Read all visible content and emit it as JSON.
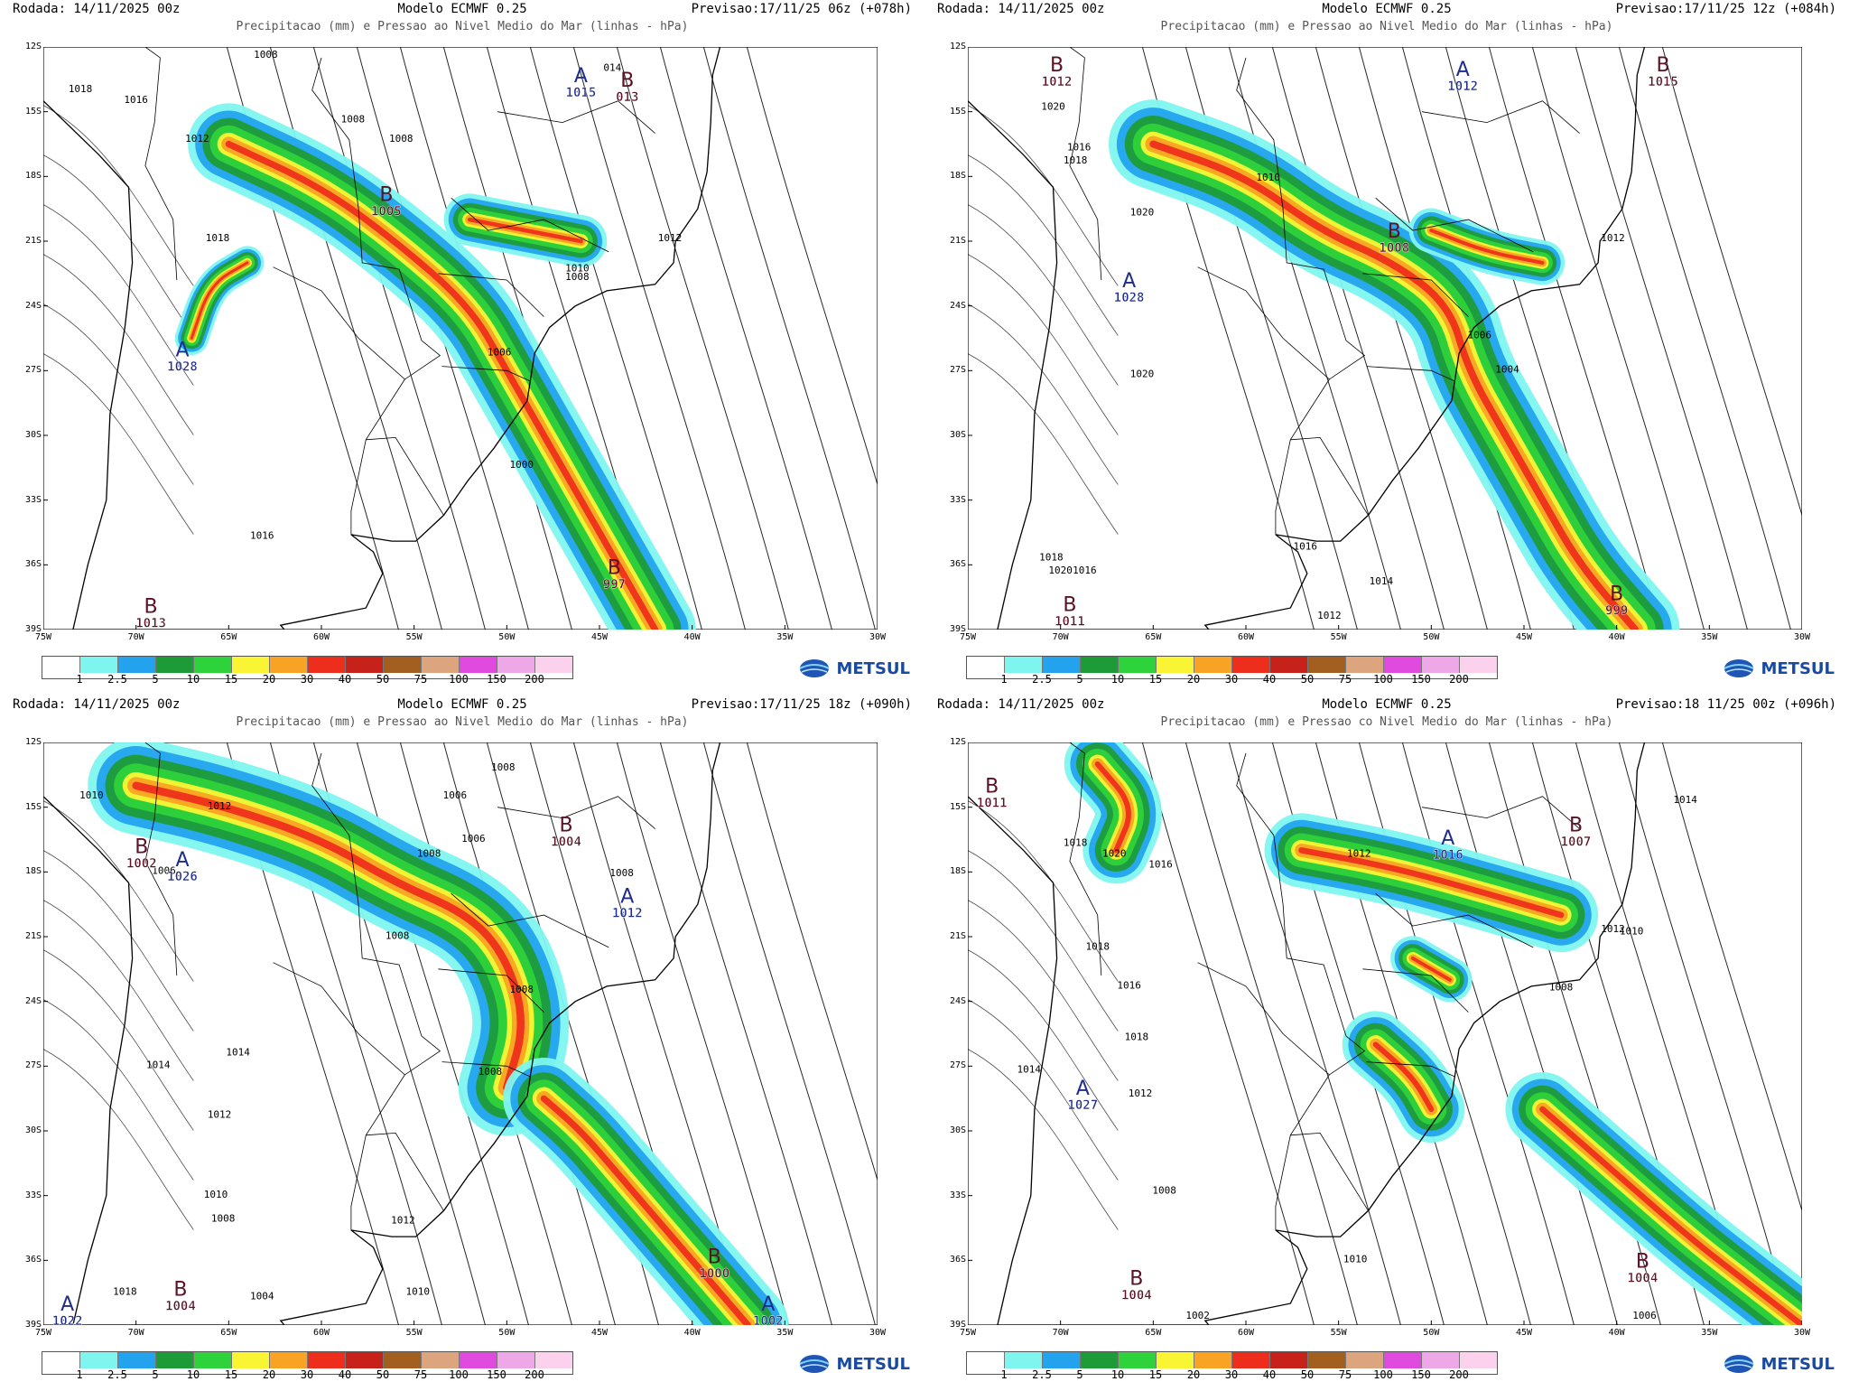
{
  "colors": {
    "precip_scale": [
      "#ffffff",
      "#7ff5f0",
      "#23a3ee",
      "#1d9b36",
      "#2ed23a",
      "#faf534",
      "#f8a323",
      "#ee2e1c",
      "#c6221a",
      "#a25f20",
      "#dca57d",
      "#e14adf",
      "#eea8e8",
      "#fbd1ee"
    ],
    "high_label": "#1e2d8c",
    "low_label": "#5a1224"
  },
  "legend_labels": [
    "1",
    "2.5",
    "5",
    "10",
    "15",
    "20",
    "30",
    "40",
    "50",
    "75",
    "100",
    "150",
    "200"
  ],
  "logo": {
    "text": "METSUL",
    "icon": "globe-logo-icon"
  },
  "axes": {
    "lat": [
      "12S",
      "15S",
      "18S",
      "21S",
      "24S",
      "27S",
      "30S",
      "33S",
      "36S",
      "39S"
    ],
    "lon": [
      "75W",
      "70W",
      "65W",
      "60W",
      "55W",
      "50W",
      "45W",
      "40W",
      "35W",
      "30W"
    ]
  },
  "panels": [
    {
      "rodada": "Rodada: 14/11/2025 00z",
      "modelo": "Modelo ECMWF 0.25",
      "previsao": "Previsao:17/11/25 06z (+078h)",
      "subtitle": "Precipitacao (mm) e Pressao ao Nivel Medio do Mar (linhas - hPa)",
      "systems": [
        {
          "type": "A",
          "value": "1015",
          "lon": -46,
          "lat": -13.8
        },
        {
          "type": "B",
          "value": "013",
          "lon": -43.5,
          "lat": -14
        },
        {
          "type": "B",
          "value": "1005",
          "lon": -56.5,
          "lat": -19.3
        },
        {
          "type": "A",
          "value": "1028",
          "lon": -67.5,
          "lat": -26.5
        },
        {
          "type": "B",
          "value": "997",
          "lon": -44.2,
          "lat": -36.6
        },
        {
          "type": "B",
          "value": "1013",
          "lon": -69.2,
          "lat": -38.4
        }
      ],
      "isobars": [
        {
          "value": "1018",
          "lon": -73,
          "lat": -14.1
        },
        {
          "value": "1016",
          "lon": -70,
          "lat": -14.6
        },
        {
          "value": "1012",
          "lon": -66.7,
          "lat": -16.4
        },
        {
          "value": "1008",
          "lon": -58.3,
          "lat": -15.5
        },
        {
          "value": "1008",
          "lon": -55.7,
          "lat": -16.4
        },
        {
          "value": "1008",
          "lon": -63,
          "lat": -12.5
        },
        {
          "value": "1018",
          "lon": -65.6,
          "lat": -21
        },
        {
          "value": "1016",
          "lon": -63.2,
          "lat": -34.8
        },
        {
          "value": "1012",
          "lon": -41.2,
          "lat": -21
        },
        {
          "value": "1010",
          "lon": -46.2,
          "lat": -22.4
        },
        {
          "value": "1008",
          "lon": -46.2,
          "lat": -22.8
        },
        {
          "value": "1006",
          "lon": -50.4,
          "lat": -26.3
        },
        {
          "value": "1000",
          "lon": -49.2,
          "lat": -31.5
        },
        {
          "value": "014",
          "lon": -44.3,
          "lat": -13.1
        }
      ],
      "precip_bands": [
        {
          "points": [
            [
              -65,
              -16.5
            ],
            [
              -60,
              -18.5
            ],
            [
              -56,
              -21
            ],
            [
              -52,
              -24
            ],
            [
              -50,
              -27
            ],
            [
              -48,
              -30
            ],
            [
              -46,
              -33
            ],
            [
              -44,
              -36
            ],
            [
              -42,
              -39
            ]
          ],
          "width": 2.2
        },
        {
          "points": [
            [
              -52,
              -20
            ],
            [
              -49,
              -20.5
            ],
            [
              -46,
              -21
            ]
          ],
          "width": 1.4
        },
        {
          "points": [
            [
              -67,
              -25.5
            ],
            [
              -66,
              -23
            ],
            [
              -64,
              -22
            ]
          ],
          "width": 0.9
        }
      ]
    },
    {
      "rodada": "Rodada: 14/11/2025 00z",
      "modelo": "Modelo ECMWF 0.25",
      "previsao": "Previsao:17/11/25 12z (+084h)",
      "subtitle": "Precipitacao (mm) e Pressao ao Nivel Medio do Mar (linhas - hPa)",
      "systems": [
        {
          "type": "B",
          "value": "1012",
          "lon": -70.2,
          "lat": -13.3
        },
        {
          "type": "A",
          "value": "1012",
          "lon": -48.3,
          "lat": -13.5
        },
        {
          "type": "B",
          "value": "1015",
          "lon": -37.5,
          "lat": -13.3
        },
        {
          "type": "B",
          "value": "1008",
          "lon": -52,
          "lat": -21
        },
        {
          "type": "A",
          "value": "1028",
          "lon": -66.3,
          "lat": -23.3
        },
        {
          "type": "B",
          "value": "999",
          "lon": -40,
          "lat": -37.8
        },
        {
          "type": "B",
          "value": "1011",
          "lon": -69.5,
          "lat": -38.3
        }
      ],
      "isobars": [
        {
          "value": "1020",
          "lon": -70.4,
          "lat": -14.9
        },
        {
          "value": "1016",
          "lon": -69,
          "lat": -16.8
        },
        {
          "value": "1018",
          "lon": -69.2,
          "lat": -17.4
        },
        {
          "value": "1020",
          "lon": -65.6,
          "lat": -19.8
        },
        {
          "value": "1010",
          "lon": -58.8,
          "lat": -18.2
        },
        {
          "value": "1012",
          "lon": -40.2,
          "lat": -21
        },
        {
          "value": "1006",
          "lon": -47.4,
          "lat": -25.5
        },
        {
          "value": "1004",
          "lon": -45.9,
          "lat": -27.1
        },
        {
          "value": "1020",
          "lon": -65.6,
          "lat": -27.3
        },
        {
          "value": "1016",
          "lon": -56.8,
          "lat": -35.3
        },
        {
          "value": "1014",
          "lon": -52.7,
          "lat": -36.9
        },
        {
          "value": "1012",
          "lon": -55.5,
          "lat": -38.5
        },
        {
          "value": "1018",
          "lon": -70.5,
          "lat": -35.8
        },
        {
          "value": "1020",
          "lon": -70,
          "lat": -36.4
        },
        {
          "value": "1016",
          "lon": -68.7,
          "lat": -36.4
        }
      ],
      "precip_bands": [
        {
          "points": [
            [
              -65,
              -16.5
            ],
            [
              -60,
              -18
            ],
            [
              -56,
              -20.5
            ],
            [
              -52,
              -22
            ],
            [
              -49,
              -24
            ],
            [
              -48,
              -27
            ],
            [
              -46,
              -30
            ],
            [
              -44,
              -33
            ],
            [
              -42,
              -36
            ],
            [
              -39,
              -39
            ]
          ],
          "width": 2.4
        },
        {
          "points": [
            [
              -50,
              -20.5
            ],
            [
              -47,
              -21.5
            ],
            [
              -44,
              -22
            ]
          ],
          "width": 1.2
        }
      ]
    },
    {
      "rodada": "Rodada: 14/11/2025 00z",
      "modelo": "Modelo ECMWF 0.25",
      "previsao": "Previsao:17/11/25 18z (+090h)",
      "subtitle": "Precipitacao (mm) e Pressao ao Nivel Medio do Mar (linhas - hPa)",
      "systems": [
        {
          "type": "B",
          "value": "1004",
          "lon": -46.8,
          "lat": -16.3
        },
        {
          "type": "B",
          "value": "1002",
          "lon": -69.7,
          "lat": -17.3
        },
        {
          "type": "A",
          "value": "1026",
          "lon": -67.5,
          "lat": -17.9
        },
        {
          "type": "A",
          "value": "1012",
          "lon": -43.5,
          "lat": -19.6
        },
        {
          "type": "B",
          "value": "1000",
          "lon": -38.8,
          "lat": -36.3
        },
        {
          "type": "A",
          "value": "1002",
          "lon": -35.9,
          "lat": -38.5
        },
        {
          "type": "B",
          "value": "1004",
          "lon": -67.6,
          "lat": -37.8
        },
        {
          "type": "A",
          "value": "1022",
          "lon": -73.7,
          "lat": -38.5
        }
      ],
      "isobars": [
        {
          "value": "1006",
          "lon": -52.8,
          "lat": -14.6
        },
        {
          "value": "1008",
          "lon": -50.2,
          "lat": -13.3
        },
        {
          "value": "1010",
          "lon": -72.4,
          "lat": -14.6
        },
        {
          "value": "1012",
          "lon": -65.5,
          "lat": -15.1
        },
        {
          "value": "1006",
          "lon": -68.5,
          "lat": -18.1
        },
        {
          "value": "1008",
          "lon": -54.2,
          "lat": -17.3
        },
        {
          "value": "1006",
          "lon": -51.8,
          "lat": -16.6
        },
        {
          "value": "1008",
          "lon": -43.8,
          "lat": -18.2
        },
        {
          "value": "1008",
          "lon": -55.9,
          "lat": -21.1
        },
        {
          "value": "1014",
          "lon": -64.5,
          "lat": -26.5
        },
        {
          "value": "1014",
          "lon": -68.8,
          "lat": -27.1
        },
        {
          "value": "1012",
          "lon": -65.5,
          "lat": -29.4
        },
        {
          "value": "1010",
          "lon": -65.7,
          "lat": -33.1
        },
        {
          "value": "1008",
          "lon": -65.3,
          "lat": -34.2
        },
        {
          "value": "1012",
          "lon": -55.6,
          "lat": -34.3
        },
        {
          "value": "1010",
          "lon": -54.8,
          "lat": -37.6
        },
        {
          "value": "1018",
          "lon": -70.6,
          "lat": -37.6
        },
        {
          "value": "1004",
          "lon": -63.2,
          "lat": -37.8
        },
        {
          "value": "1008",
          "lon": -49.2,
          "lat": -23.6
        },
        {
          "value": "1008",
          "lon": -50.9,
          "lat": -27.4
        }
      ],
      "precip_bands": [
        {
          "points": [
            [
              -70,
              -14
            ],
            [
              -65,
              -15
            ],
            [
              -60,
              -16.5
            ],
            [
              -56,
              -18.5
            ],
            [
              -52,
              -20
            ],
            [
              -50,
              -22
            ],
            [
              -49,
              -25
            ],
            [
              -50,
              -28
            ]
          ],
          "width": 2.6
        },
        {
          "points": [
            [
              -48,
              -28.5
            ],
            [
              -46,
              -30
            ],
            [
              -44,
              -32
            ],
            [
              -42,
              -34
            ],
            [
              -40,
              -36
            ],
            [
              -37,
              -39
            ]
          ],
          "width": 2.2
        }
      ]
    },
    {
      "rodada": "Rodada: 14/11/2025 00z",
      "modelo": "Modelo ECMWF 0.25",
      "previsao": "Previsao:18 11/25 00z (+096h)",
      "subtitle": "Precipitacao (mm) e Pressao co Nivel Medio do Mar (linhas - hPa)",
      "systems": [
        {
          "type": "B",
          "value": "1011",
          "lon": -73.7,
          "lat": -14.5
        },
        {
          "type": "A",
          "value": "1016",
          "lon": -49.1,
          "lat": -16.9
        },
        {
          "type": "B",
          "value": "1007",
          "lon": -42.2,
          "lat": -16.3
        },
        {
          "type": "A",
          "value": "1027",
          "lon": -68.8,
          "lat": -28.5
        },
        {
          "type": "B",
          "value": "1004",
          "lon": -38.6,
          "lat": -36.5
        },
        {
          "type": "B",
          "value": "1004",
          "lon": -65.9,
          "lat": -37.3
        }
      ],
      "isobars": [
        {
          "value": "1014",
          "lon": -36.3,
          "lat": -14.8
        },
        {
          "value": "1018",
          "lon": -69.2,
          "lat": -16.8
        },
        {
          "value": "1020",
          "lon": -67.1,
          "lat": -17.3
        },
        {
          "value": "1016",
          "lon": -64.6,
          "lat": -17.8
        },
        {
          "value": "1012",
          "lon": -53.9,
          "lat": -17.3
        },
        {
          "value": "1010",
          "lon": -39.2,
          "lat": -20.9
        },
        {
          "value": "1012",
          "lon": -40.2,
          "lat": -20.8
        },
        {
          "value": "1008",
          "lon": -43,
          "lat": -23.5
        },
        {
          "value": "1018",
          "lon": -68,
          "lat": -21.6
        },
        {
          "value": "1016",
          "lon": -66.3,
          "lat": -23.4
        },
        {
          "value": "1018",
          "lon": -65.9,
          "lat": -25.8
        },
        {
          "value": "1014",
          "lon": -71.7,
          "lat": -27.3
        },
        {
          "value": "1012",
          "lon": -65.7,
          "lat": -28.4
        },
        {
          "value": "1008",
          "lon": -64.4,
          "lat": -32.9
        },
        {
          "value": "1010",
          "lon": -54.1,
          "lat": -36.1
        },
        {
          "value": "1002",
          "lon": -62.6,
          "lat": -38.7
        },
        {
          "value": "1006",
          "lon": -38.5,
          "lat": -38.7
        }
      ],
      "precip_bands": [
        {
          "points": [
            [
              -68,
              -13
            ],
            [
              -66,
              -15
            ],
            [
              -67,
              -17
            ]
          ],
          "width": 1.8
        },
        {
          "points": [
            [
              -57,
              -17
            ],
            [
              -52,
              -17.8
            ],
            [
              -47,
              -19
            ],
            [
              -43,
              -20
            ]
          ],
          "width": 2.0
        },
        {
          "points": [
            [
              -51,
              -22
            ],
            [
              -49,
              -23
            ]
          ],
          "width": 1.2
        },
        {
          "points": [
            [
              -53,
              -26
            ],
            [
              -51,
              -27.5
            ],
            [
              -50,
              -29
            ]
          ],
          "width": 1.8
        },
        {
          "points": [
            [
              -44,
              -29
            ],
            [
              -40,
              -32
            ],
            [
              -36,
              -35
            ],
            [
              -33,
              -37
            ],
            [
              -30,
              -39
            ]
          ],
          "width": 2.0
        }
      ]
    }
  ]
}
